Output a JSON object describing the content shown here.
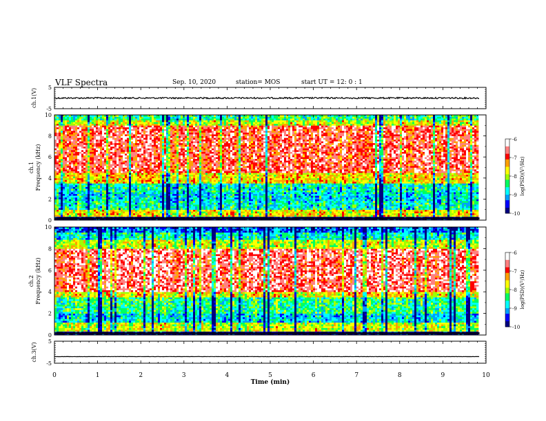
{
  "header": {
    "title": "VLF Spectra",
    "date": "Sep. 10, 2020",
    "station": "station= MOS",
    "start": "start  UT  =   12: 0  : 1"
  },
  "chart_data": [
    {
      "type": "line",
      "panel": "ch1-waveform",
      "ylabel": "ch.1(V)",
      "ylim": [
        -5,
        5
      ],
      "yticks": [
        "5",
        "-5"
      ],
      "xlim": [
        0,
        10
      ],
      "description_level": 0.0
    },
    {
      "type": "heatmap",
      "panel": "ch1-spectrogram",
      "ylabel": "ch.1\nFrequency (kHz)",
      "ylim": [
        0,
        10
      ],
      "yticks": [
        "0",
        "2",
        "4",
        "6",
        "8",
        "10"
      ],
      "xlim": [
        0,
        10
      ],
      "colorbar": {
        "label": "log(PSD)(V²/Hz)",
        "range": [
          -10,
          -6
        ],
        "ticks": [
          "-6",
          "-7",
          "-8",
          "-9",
          "-10"
        ]
      }
    },
    {
      "type": "heatmap",
      "panel": "ch2-spectrogram",
      "ylabel": "ch.2\nFrequency (kHz)",
      "ylim": [
        0,
        10
      ],
      "yticks": [
        "0",
        "2",
        "4",
        "6",
        "8",
        "10"
      ],
      "xlim": [
        0,
        10
      ],
      "colorbar": {
        "label": "log(PSD)(V²/Hz)",
        "range": [
          -10,
          -6
        ],
        "ticks": [
          "-6",
          "-7",
          "-8",
          "-9",
          "-10"
        ]
      }
    },
    {
      "type": "line",
      "panel": "ch3-waveform",
      "ylabel": "ch.3(V)",
      "ylim": [
        -5,
        5
      ],
      "yticks": [
        "5",
        "-5"
      ],
      "xlim": [
        0,
        10
      ],
      "description_level": -2.0
    }
  ],
  "xaxis": {
    "label": "Time  (min)",
    "ticks": [
      "0",
      "1",
      "2",
      "3",
      "4",
      "5",
      "6",
      "7",
      "8",
      "9",
      "10"
    ],
    "data_end": 9.85
  },
  "colors": {
    "spectrum": [
      "#000080",
      "#0000ff",
      "#00a0ff",
      "#00ffff",
      "#00ff60",
      "#a0ff00",
      "#ffff00",
      "#ffa000",
      "#ff0000",
      "#ff8080",
      "#ffffff"
    ]
  }
}
